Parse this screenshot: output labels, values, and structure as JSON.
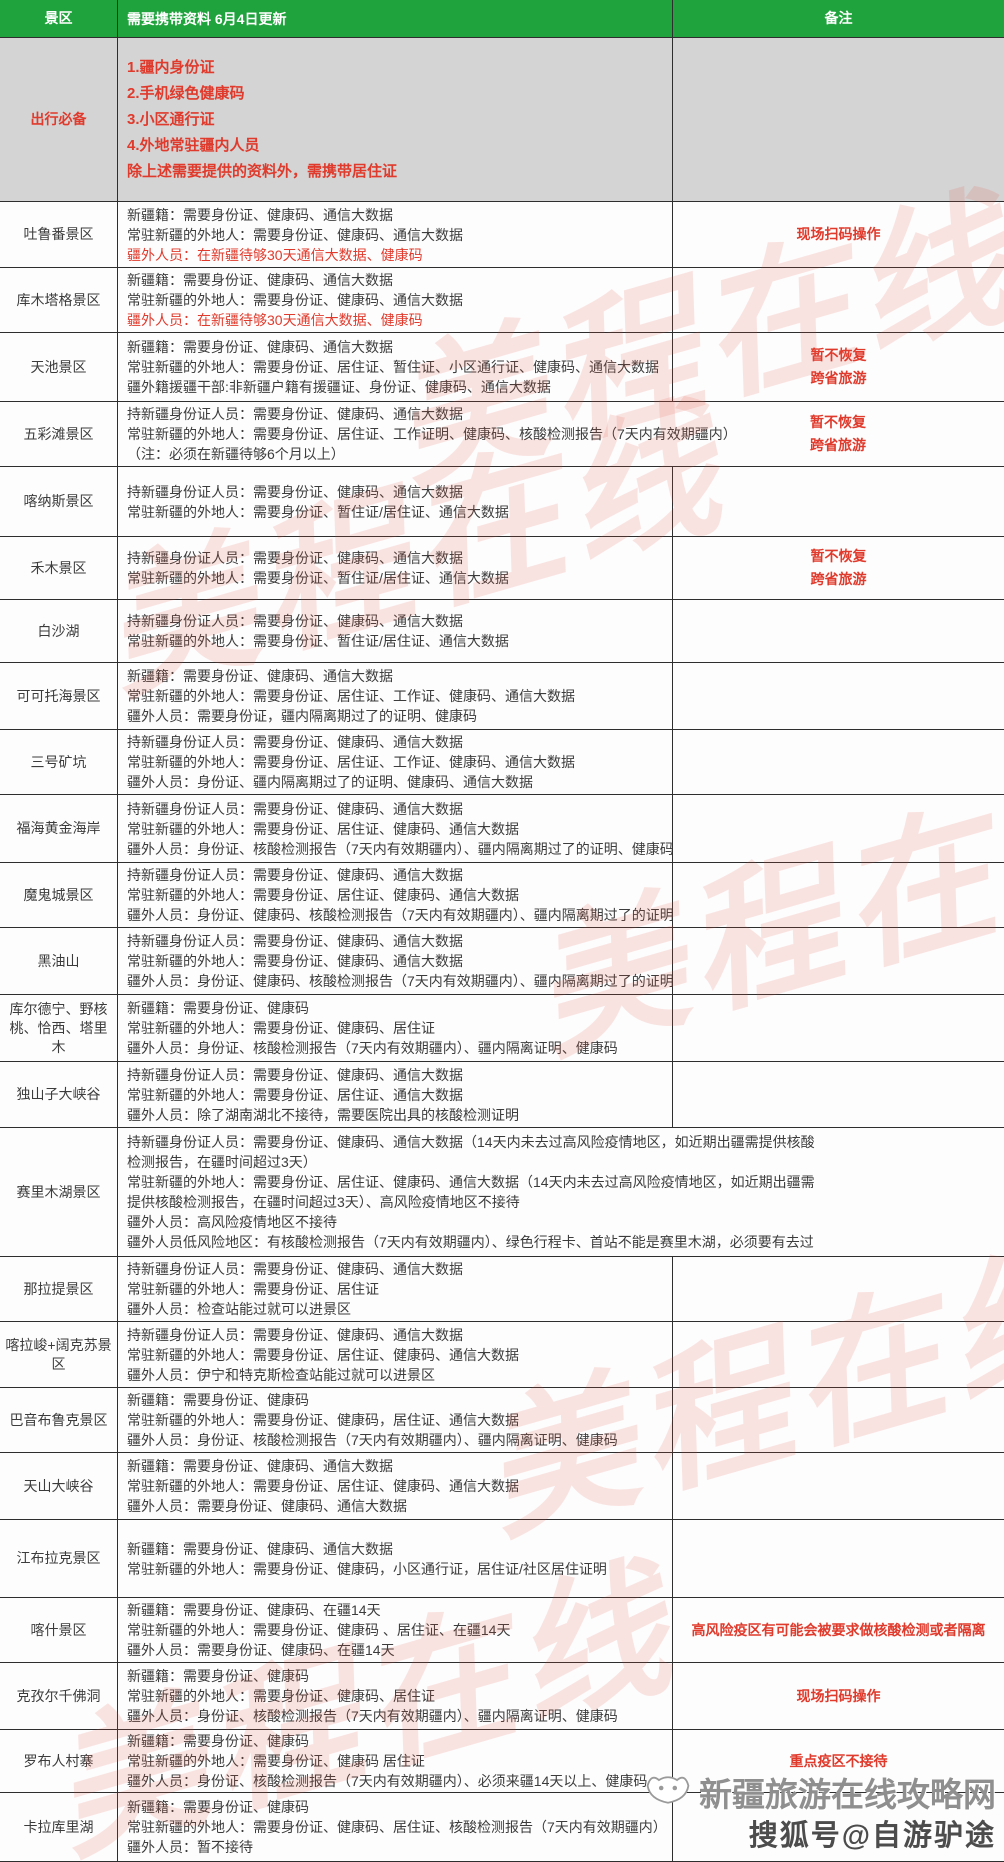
{
  "header": {
    "scenic": "景区",
    "docs": "需要携带资料  6月4日更新",
    "remark": "备注"
  },
  "essentials_row": {
    "name": "出行必备",
    "lines": [
      "1.疆内身份证",
      "2.手机绿色健康码",
      "3.小区通行证",
      "4.外地常驻疆内人员",
      "除上述需要提供的资料外，需携带居住证"
    ]
  },
  "rows": [
    {
      "name": "吐鲁番景区",
      "lines": [
        "新疆籍：需要身份证、健康码、通信大数据",
        "常驻新疆的外地人：需要身份证、健康码、通信大数据",
        {
          "t": "疆外人员：在新疆待够30天通信大数据、健康码",
          "red": true
        }
      ],
      "remark": "现场扫码操作"
    },
    {
      "name": "库木塔格景区",
      "lines": [
        "新疆籍：需要身份证、健康码、通信大数据",
        "常驻新疆的外地人：需要身份证、健康码、通信大数据",
        {
          "t": "疆外人员：在新疆待够30天通信大数据、健康码",
          "red": true
        }
      ],
      "remark": ""
    },
    {
      "name": "天池景区",
      "lines": [
        "新疆籍：需要身份证、健康码、通信大数据",
        "常驻新疆的外地人：需要身份证、居住证、暂住证、小区通行证、健康码、通信大数据",
        "疆外籍援疆干部:非新疆户籍有援疆证、身份证、健康码、通信大数据"
      ],
      "remark": "暂不恢复\n跨省旅游"
    },
    {
      "name": "五彩滩景区",
      "wide": true,
      "lines": [
        "持新疆身份证人员：需要身份证、健康码、通信大数据",
        "常驻新疆的外地人：需要身份证、居住证、工作证明、健康码、核酸检测报告（7天内有效期疆内）",
        "（注：必须在新疆待够6个月以上）"
      ],
      "remark": "暂不恢复\n跨省旅游"
    },
    {
      "name": "喀纳斯景区",
      "lines": [
        "持新疆身份证人员：需要身份证、健康码、通信大数据",
        "常驻新疆的外地人：需要身份证、暂住证/居住证、通信大数据"
      ],
      "remark": ""
    },
    {
      "name": "禾木景区",
      "lines": [
        "持新疆身份证人员：需要身份证、健康码、通信大数据",
        "常驻新疆的外地人：需要身份证、暂住证/居住证、通信大数据"
      ],
      "remark": "暂不恢复\n跨省旅游"
    },
    {
      "name": "白沙湖",
      "lines": [
        "持新疆身份证人员：需要身份证、健康码、通信大数据",
        "常驻新疆的外地人：需要身份证、暂住证/居住证、通信大数据"
      ],
      "remark": ""
    },
    {
      "name": "可可托海景区",
      "lines": [
        "新疆籍：需要身份证、健康码、通信大数据",
        "常驻新疆的外地人：需要身份证、居住证、工作证、健康码、通信大数据",
        "疆外人员：需要身份证，疆内隔离期过了的证明、健康码"
      ],
      "remark": ""
    },
    {
      "name": "三号矿坑",
      "lines": [
        "持新疆身份证人员：需要身份证、健康码、通信大数据",
        "常驻新疆的外地人：需要身份证、居住证、工作证、健康码、通信大数据",
        "疆外人员：身份证、疆内隔离期过了的证明、健康码、通信大数据"
      ],
      "remark": ""
    },
    {
      "name": "福海黄金海岸",
      "lines": [
        "持新疆身份证人员：需要身份证、健康码、通信大数据",
        "常驻新疆的外地人：需要身份证、居住证、健康码、通信大数据",
        "疆外人员：身份证、核酸检测报告（7天内有效期疆内）、疆内隔离期过了的证明、健康码"
      ],
      "remark": ""
    },
    {
      "name": "魔鬼城景区",
      "lines": [
        "持新疆身份证人员：需要身份证、健康码、通信大数据",
        "常驻新疆的外地人：需要身份证、居住证、健康码、通信大数据",
        "疆外人员：身份证、健康码、核酸检测报告（7天内有效期疆内）、疆内隔离期过了的证明"
      ],
      "remark": ""
    },
    {
      "name": "黑油山",
      "lines": [
        "持新疆身份证人员：需要身份证、健康码、通信大数据",
        "常驻新疆的外地人：需要身份证、健康码、通信大数据",
        "疆外人员：身份证、健康码、核酸检测报告（7天内有效期疆内）、疆内隔离期过了的证明"
      ],
      "remark": ""
    },
    {
      "name": "库尔德宁、野核桃、恰西、塔里木",
      "lines": [
        "新疆籍：需要身份证、健康码",
        "常驻新疆的外地人：需要身份证、健康码、居住证",
        "疆外人员：身份证、核酸检测报告（7天内有效期疆内）、疆内隔离证明、健康码"
      ],
      "remark": ""
    },
    {
      "name": "独山子大峡谷",
      "lines": [
        "持新疆身份证人员：需要身份证、健康码、通信大数据",
        "常驻新疆的外地人：需要身份证、居住证、通信大数据",
        "疆外人员：除了湖南湖北不接待，需要医院出具的核酸检测证明"
      ],
      "remark": ""
    },
    {
      "name": "赛里木湖景区",
      "wide": true,
      "lines": [
        "持新疆身份证人员：需要身份证、健康码、通信大数据（14天内未去过高风险疫情地区，如近期出疆需提供核酸",
        "检测报告，在疆时间超过3天）",
        "常驻新疆的外地人：需要身份证、居住证、健康码、通信大数据（14天内未去过高风险疫情地区，如近期出疆需",
        "提供核酸检测报告，在疆时间超过3天）、高风险疫情地区不接待",
        "疆外人员：高风险疫情地区不接待",
        "疆外人员低风险地区：有核酸检测报告（7天内有效期疆内）、绿色行程卡、首站不能是赛里木湖，必须要有去过"
      ],
      "remark": ""
    },
    {
      "name": "那拉提景区",
      "lines": [
        "持新疆身份证人员：需要身份证、健康码、通信大数据",
        "常驻新疆的外地人：需要身份证、居住证",
        "疆外人员：检查站能过就可以进景区"
      ],
      "remark": ""
    },
    {
      "name": "喀拉峻+阔克苏景区",
      "lines": [
        "持新疆身份证人员：需要身份证、健康码、通信大数据",
        "常驻新疆的外地人：需要身份证、居住证、健康码、通信大数据",
        "疆外人员：伊宁和特克斯检查站能过就可以进景区"
      ],
      "remark": ""
    },
    {
      "name": "巴音布鲁克景区",
      "lines": [
        "新疆籍：需要身份证、健康码",
        "常驻新疆的外地人：需要身份证、健康码，居住证、通信大数据",
        "疆外人员：身份证、核酸检测报告（7天内有效期疆内）、疆内隔离证明、健康码"
      ],
      "remark": ""
    },
    {
      "name": "天山大峡谷",
      "lines": [
        "新疆籍：需要身份证、健康码、通信大数据",
        "常驻新疆的外地人：需要身份证、居住证、健康码、通信大数据",
        "疆外人员：需要身份证、健康码、通信大数据"
      ],
      "remark": ""
    },
    {
      "name": "江布拉克景区",
      "lines": [
        "新疆籍：需要身份证、健康码、通信大数据",
        "常驻新疆的外地人：需要身份证、健康码，小区通行证，居住证/社区居住证明"
      ],
      "remark": ""
    },
    {
      "name": "喀什景区",
      "lines": [
        "新疆籍：需要身份证、健康码、在疆14天",
        "常驻新疆的外地人：需要身份证、健康码 、居住证、在疆14天",
        "疆外人员：需要身份证、健康码、在疆14天"
      ],
      "remark": "高风险疫区有可能会被要求做核酸检测或者隔离"
    },
    {
      "name": "克孜尔千佛洞",
      "lines": [
        "新疆籍：需要身份证、健康码",
        "常驻新疆的外地人：需要身份证、健康码、居住证",
        "疆外人员：身份证、核酸检测报告（7天内有效期疆内）、疆内隔离证明、健康码"
      ],
      "remark": "现场扫码操作"
    },
    {
      "name": "罗布人村寨",
      "lines": [
        "新疆籍：需要身份证、健康码",
        "常驻新疆的外地人：需要身份证、健康码  居住证",
        "疆外人员：身份证、核酸检测报告（7天内有效期疆内）、必须来疆14天以上、健康码"
      ],
      "remark": "重点疫区不接待"
    },
    {
      "name": "卡拉库里湖",
      "lines": [
        "新疆籍：需要身份证、健康码",
        "常驻新疆的外地人：需要身份证、健康码、居住证、核酸检测报告（7天内有效期疆内）",
        "疆外人员：暂不接待"
      ],
      "remark": ""
    }
  ],
  "watermark": {
    "text": "美程在线"
  },
  "footer": {
    "site": "新疆旅游在线攻略网",
    "account": "搜狐号@自游驴途"
  },
  "colors": {
    "header_green": "#1fa33c",
    "accent_red": "#e03a2c",
    "essentials_bg": "#d4d4d4"
  }
}
